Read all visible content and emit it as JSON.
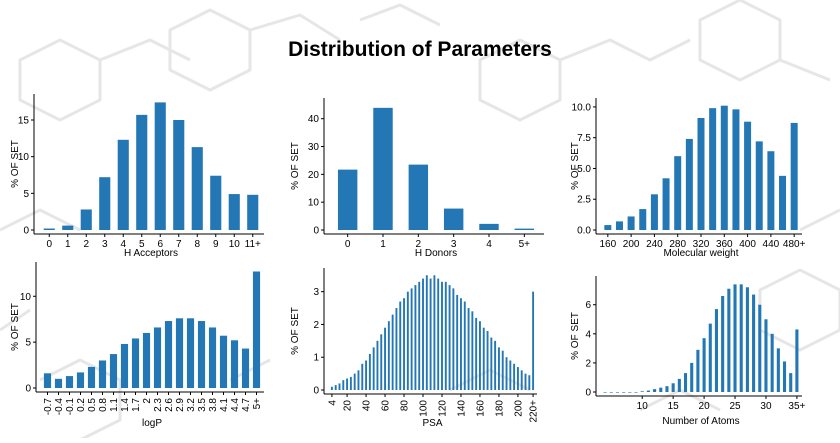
{
  "title": "Distribution of Parameters",
  "colors": {
    "bar": "#2377b4",
    "background": "#ffffff",
    "watermark": "#e6e6e6"
  },
  "chart_data": [
    {
      "type": "bar",
      "xlabel": "H Acceptors",
      "ylabel": "% OF SET",
      "categories": [
        "0",
        "1",
        "2",
        "3",
        "4",
        "5",
        "6",
        "7",
        "8",
        "9",
        "10",
        "11+"
      ],
      "tick_labels": [
        "0",
        "1",
        "2",
        "3",
        "4",
        "5",
        "6",
        "7",
        "8",
        "9",
        "10",
        "11+"
      ],
      "values": [
        0.2,
        0.6,
        2.8,
        7.2,
        12.3,
        15.7,
        17.4,
        15.0,
        11.3,
        7.4,
        4.9,
        4.8
      ],
      "ylim": [
        0,
        18
      ],
      "yticks": [
        0,
        5,
        10,
        15
      ],
      "ytick_labels": [
        "0",
        "5",
        "10",
        "15"
      ],
      "grid": false
    },
    {
      "type": "bar",
      "xlabel": "H Donors",
      "ylabel": "% OF SET",
      "categories": [
        "0",
        "1",
        "2",
        "3",
        "4",
        "5+"
      ],
      "tick_labels": [
        "0",
        "1",
        "2",
        "3",
        "4",
        "5+"
      ],
      "values": [
        21.7,
        43.9,
        23.5,
        7.7,
        2.2,
        0.5
      ],
      "ylim": [
        0,
        46
      ],
      "yticks": [
        0,
        10,
        20,
        30,
        40
      ],
      "ytick_labels": [
        "0",
        "10",
        "20",
        "30",
        "40"
      ],
      "grid": false
    },
    {
      "type": "bar",
      "xlabel": "Molecular weight",
      "ylabel": "% OF SET",
      "categories": [
        "160",
        "180",
        "200",
        "220",
        "240",
        "260",
        "280",
        "300",
        "320",
        "340",
        "360",
        "380",
        "400",
        "420",
        "440",
        "460",
        "480+"
      ],
      "tick_labels": [
        "160",
        "200",
        "240",
        "280",
        "320",
        "360",
        "400",
        "440",
        "480+"
      ],
      "values": [
        0.4,
        0.7,
        1.1,
        1.7,
        2.9,
        4.2,
        6.0,
        7.4,
        9.1,
        9.9,
        10.1,
        9.8,
        8.8,
        7.2,
        6.4,
        4.4,
        8.7
      ],
      "ylim": [
        0,
        10.4
      ],
      "yticks": [
        0,
        2.5,
        5,
        7.5,
        10
      ],
      "ytick_labels": [
        "0.0",
        "2.5",
        "5.0",
        "7.5",
        "10.0"
      ],
      "grid": false
    },
    {
      "type": "bar",
      "xlabel": "logP",
      "ylabel": "% OF SET",
      "categories": [
        "-0.7",
        "-0.4",
        "-0.1",
        "0.2",
        "0.5",
        "0.8",
        "1.1",
        "1.4",
        "1.7",
        "2.0",
        "2.3",
        "2.6",
        "2.9",
        "3.2",
        "3.5",
        "3.8",
        "4.1",
        "4.4",
        "4.7",
        "5+"
      ],
      "tick_labels": [
        "-0.7",
        "-0.4",
        "-0.1",
        "0.2",
        "0.5",
        "0.8",
        "1.1",
        "1.4",
        "1.7",
        "2",
        "2.3",
        "2.6",
        "2.9",
        "3.2",
        "3.5",
        "3.8",
        "4.1",
        "4.4",
        "4.7",
        "5+"
      ],
      "values": [
        1.6,
        1.0,
        1.3,
        1.7,
        2.3,
        3.0,
        3.7,
        4.8,
        5.4,
        6.0,
        6.6,
        7.3,
        7.6,
        7.6,
        7.3,
        6.6,
        5.7,
        5.2,
        4.3,
        12.7
      ],
      "ylim": [
        0,
        13.3
      ],
      "yticks": [
        0,
        5,
        10
      ],
      "ytick_labels": [
        "0",
        "5",
        "10"
      ],
      "grid": false
    },
    {
      "type": "bar",
      "xlabel": "PSA",
      "ylabel": "% OF SET",
      "bins_start": 4,
      "bins_step": 4,
      "x_labels": [
        "4",
        "20",
        "40",
        "60",
        "80",
        "100",
        "120",
        "140",
        "160",
        "180",
        "200",
        "220+"
      ],
      "values": [
        0.1,
        0.15,
        0.2,
        0.3,
        0.35,
        0.4,
        0.5,
        0.6,
        0.8,
        0.9,
        1.1,
        1.3,
        1.5,
        1.7,
        1.9,
        2.1,
        2.3,
        2.5,
        2.7,
        2.8,
        3.0,
        3.1,
        3.2,
        3.3,
        3.4,
        3.5,
        3.4,
        3.5,
        3.4,
        3.3,
        3.3,
        3.2,
        3.1,
        2.9,
        2.8,
        2.7,
        2.5,
        2.4,
        2.2,
        2.1,
        1.9,
        1.8,
        1.6,
        1.5,
        1.3,
        1.2,
        1.0,
        0.9,
        0.8,
        0.7,
        0.6,
        0.5,
        0.45,
        3.0
      ],
      "ylim": [
        0,
        3.6
      ],
      "yticks": [
        0,
        1,
        2,
        3
      ],
      "ytick_labels": [
        "0",
        "1",
        "2",
        "3"
      ],
      "grid": false
    },
    {
      "type": "bar",
      "xlabel": "Number of Atoms",
      "ylabel": "% OF SET",
      "categories": [
        "4",
        "5",
        "6",
        "7",
        "8",
        "9",
        "10",
        "11",
        "12",
        "13",
        "14",
        "15",
        "16",
        "17",
        "18",
        "19",
        "20",
        "21",
        "22",
        "23",
        "24",
        "25",
        "26",
        "27",
        "28",
        "29",
        "30",
        "31",
        "32",
        "33",
        "34",
        "35+"
      ],
      "x_ticks": [
        10,
        15,
        20,
        25,
        30,
        35
      ],
      "x_tick_labels": [
        "10",
        "15",
        "20",
        "25",
        "30",
        "35+"
      ],
      "values": [
        0.0,
        0.0,
        0.0,
        0.0,
        0.0,
        0.0,
        0.05,
        0.1,
        0.2,
        0.3,
        0.4,
        0.6,
        0.9,
        1.3,
        2.0,
        2.9,
        3.7,
        4.7,
        5.7,
        6.6,
        7.1,
        7.4,
        7.4,
        7.2,
        6.7,
        6.0,
        5.0,
        4.0,
        3.0,
        2.1,
        1.3,
        4.3
      ],
      "ylim": [
        0,
        7.7
      ],
      "yticks": [
        0,
        2,
        4,
        6
      ],
      "ytick_labels": [
        "0",
        "2",
        "4",
        "6"
      ],
      "grid": false
    }
  ]
}
